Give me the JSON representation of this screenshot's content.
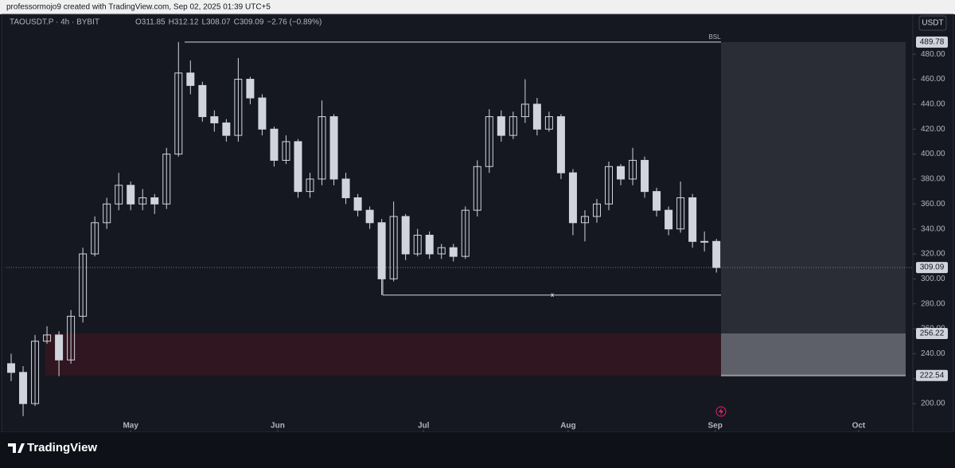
{
  "header": {
    "attribution": "professormojo9 created with TradingView.com, Sep 02, 2025 01:39 UTC+5",
    "symbol": "TAOUSDT.P · 4h · BYBIT",
    "ohlc": [
      "O311.85",
      "H312.12",
      "L308.07",
      "C309.09",
      "−2.76 (−0.89%)"
    ],
    "currency_button": "USDT"
  },
  "chart_data": {
    "type": "candlestick",
    "series": [
      {
        "color": "#d1d4dc",
        "open": [
          232,
          225,
          200,
          250,
          255,
          235,
          270,
          320,
          345,
          360,
          375,
          360,
          365,
          360,
          400,
          465,
          455,
          430,
          425,
          415,
          460,
          445,
          420,
          395,
          410,
          370,
          380,
          430,
          380,
          365,
          355,
          345,
          300,
          350,
          320,
          335,
          320,
          325,
          318,
          355,
          390,
          430,
          415,
          430,
          440,
          420,
          430,
          385,
          345,
          350,
          360,
          390,
          380,
          395,
          370,
          355,
          340,
          365,
          330,
          330
        ],
        "high": [
          240,
          230,
          255,
          262,
          258,
          275,
          325,
          350,
          365,
          385,
          378,
          372,
          368,
          405,
          489.78,
          475,
          458,
          435,
          428,
          477,
          462,
          448,
          422,
          415,
          412,
          385,
          443,
          432,
          385,
          368,
          358,
          348,
          362,
          352,
          340,
          338,
          328,
          328,
          358,
          395,
          436,
          435,
          434,
          460,
          445,
          434,
          432,
          388,
          355,
          364,
          394,
          392,
          405,
          398,
          373,
          358,
          378,
          368,
          338,
          332
        ],
        "low": [
          218,
          190,
          198,
          248,
          222,
          232,
          265,
          318,
          340,
          355,
          355,
          355,
          352,
          356,
          398,
          448,
          426,
          418,
          410,
          410,
          440,
          415,
          390,
          392,
          365,
          365,
          375,
          375,
          360,
          350,
          340,
          287,
          298,
          315,
          318,
          316,
          316,
          314,
          316,
          350,
          385,
          410,
          412,
          425,
          415,
          418,
          380,
          335,
          330,
          345,
          355,
          375,
          375,
          365,
          350,
          335,
          337,
          325,
          322,
          305
        ],
        "close": [
          225,
          200,
          250,
          255,
          235,
          270,
          320,
          345,
          360,
          375,
          360,
          365,
          360,
          400,
          465,
          455,
          430,
          425,
          415,
          460,
          445,
          420,
          395,
          410,
          370,
          380,
          430,
          380,
          365,
          355,
          345,
          300,
          350,
          320,
          335,
          320,
          325,
          318,
          355,
          390,
          430,
          415,
          430,
          440,
          420,
          430,
          385,
          345,
          350,
          360,
          390,
          380,
          395,
          370,
          355,
          340,
          365,
          330,
          330,
          309.09
        ]
      }
    ],
    "xlim": [
      -0.4,
      75.3
    ],
    "xticks": [
      {
        "value": 10,
        "label": "May"
      },
      {
        "value": 22.3,
        "label": "Jun"
      },
      {
        "value": 34.5,
        "label": "Jul"
      },
      {
        "value": 46.6,
        "label": "Aug"
      },
      {
        "value": 58.9,
        "label": "Sep"
      },
      {
        "value": 70.9,
        "label": "Oct"
      }
    ],
    "ylim": [
      179,
      498
    ],
    "yticks": [
      {
        "value": 200,
        "label": "200.00"
      },
      {
        "value": 220,
        "label": "220.00"
      },
      {
        "value": 240,
        "label": "240.00"
      },
      {
        "value": 260,
        "label": "260.00"
      },
      {
        "value": 280,
        "label": "280.00"
      },
      {
        "value": 300,
        "label": "300.00"
      },
      {
        "value": 320,
        "label": "320.00"
      },
      {
        "value": 340,
        "label": "340.00"
      },
      {
        "value": 360,
        "label": "360.00"
      },
      {
        "value": 380,
        "label": "380.00"
      },
      {
        "value": 400,
        "label": "400.00"
      },
      {
        "value": 420,
        "label": "420.00"
      },
      {
        "value": 440,
        "label": "440.00"
      },
      {
        "value": 460,
        "label": "460.00"
      },
      {
        "value": 480,
        "label": "480.00"
      }
    ],
    "bsl": {
      "label": "BSL",
      "level": {
        "value": 489.78,
        "label": "489.78"
      }
    },
    "sell_side": {
      "label": "x",
      "level": 287
    },
    "last_price": {
      "value": 309.09,
      "label": "309.09"
    },
    "zone": {
      "high": {
        "value": 256.22,
        "label": "256.22"
      },
      "low": {
        "value": 222.54,
        "label": "222.54"
      }
    }
  },
  "footer": {
    "brand": "TradingView"
  }
}
